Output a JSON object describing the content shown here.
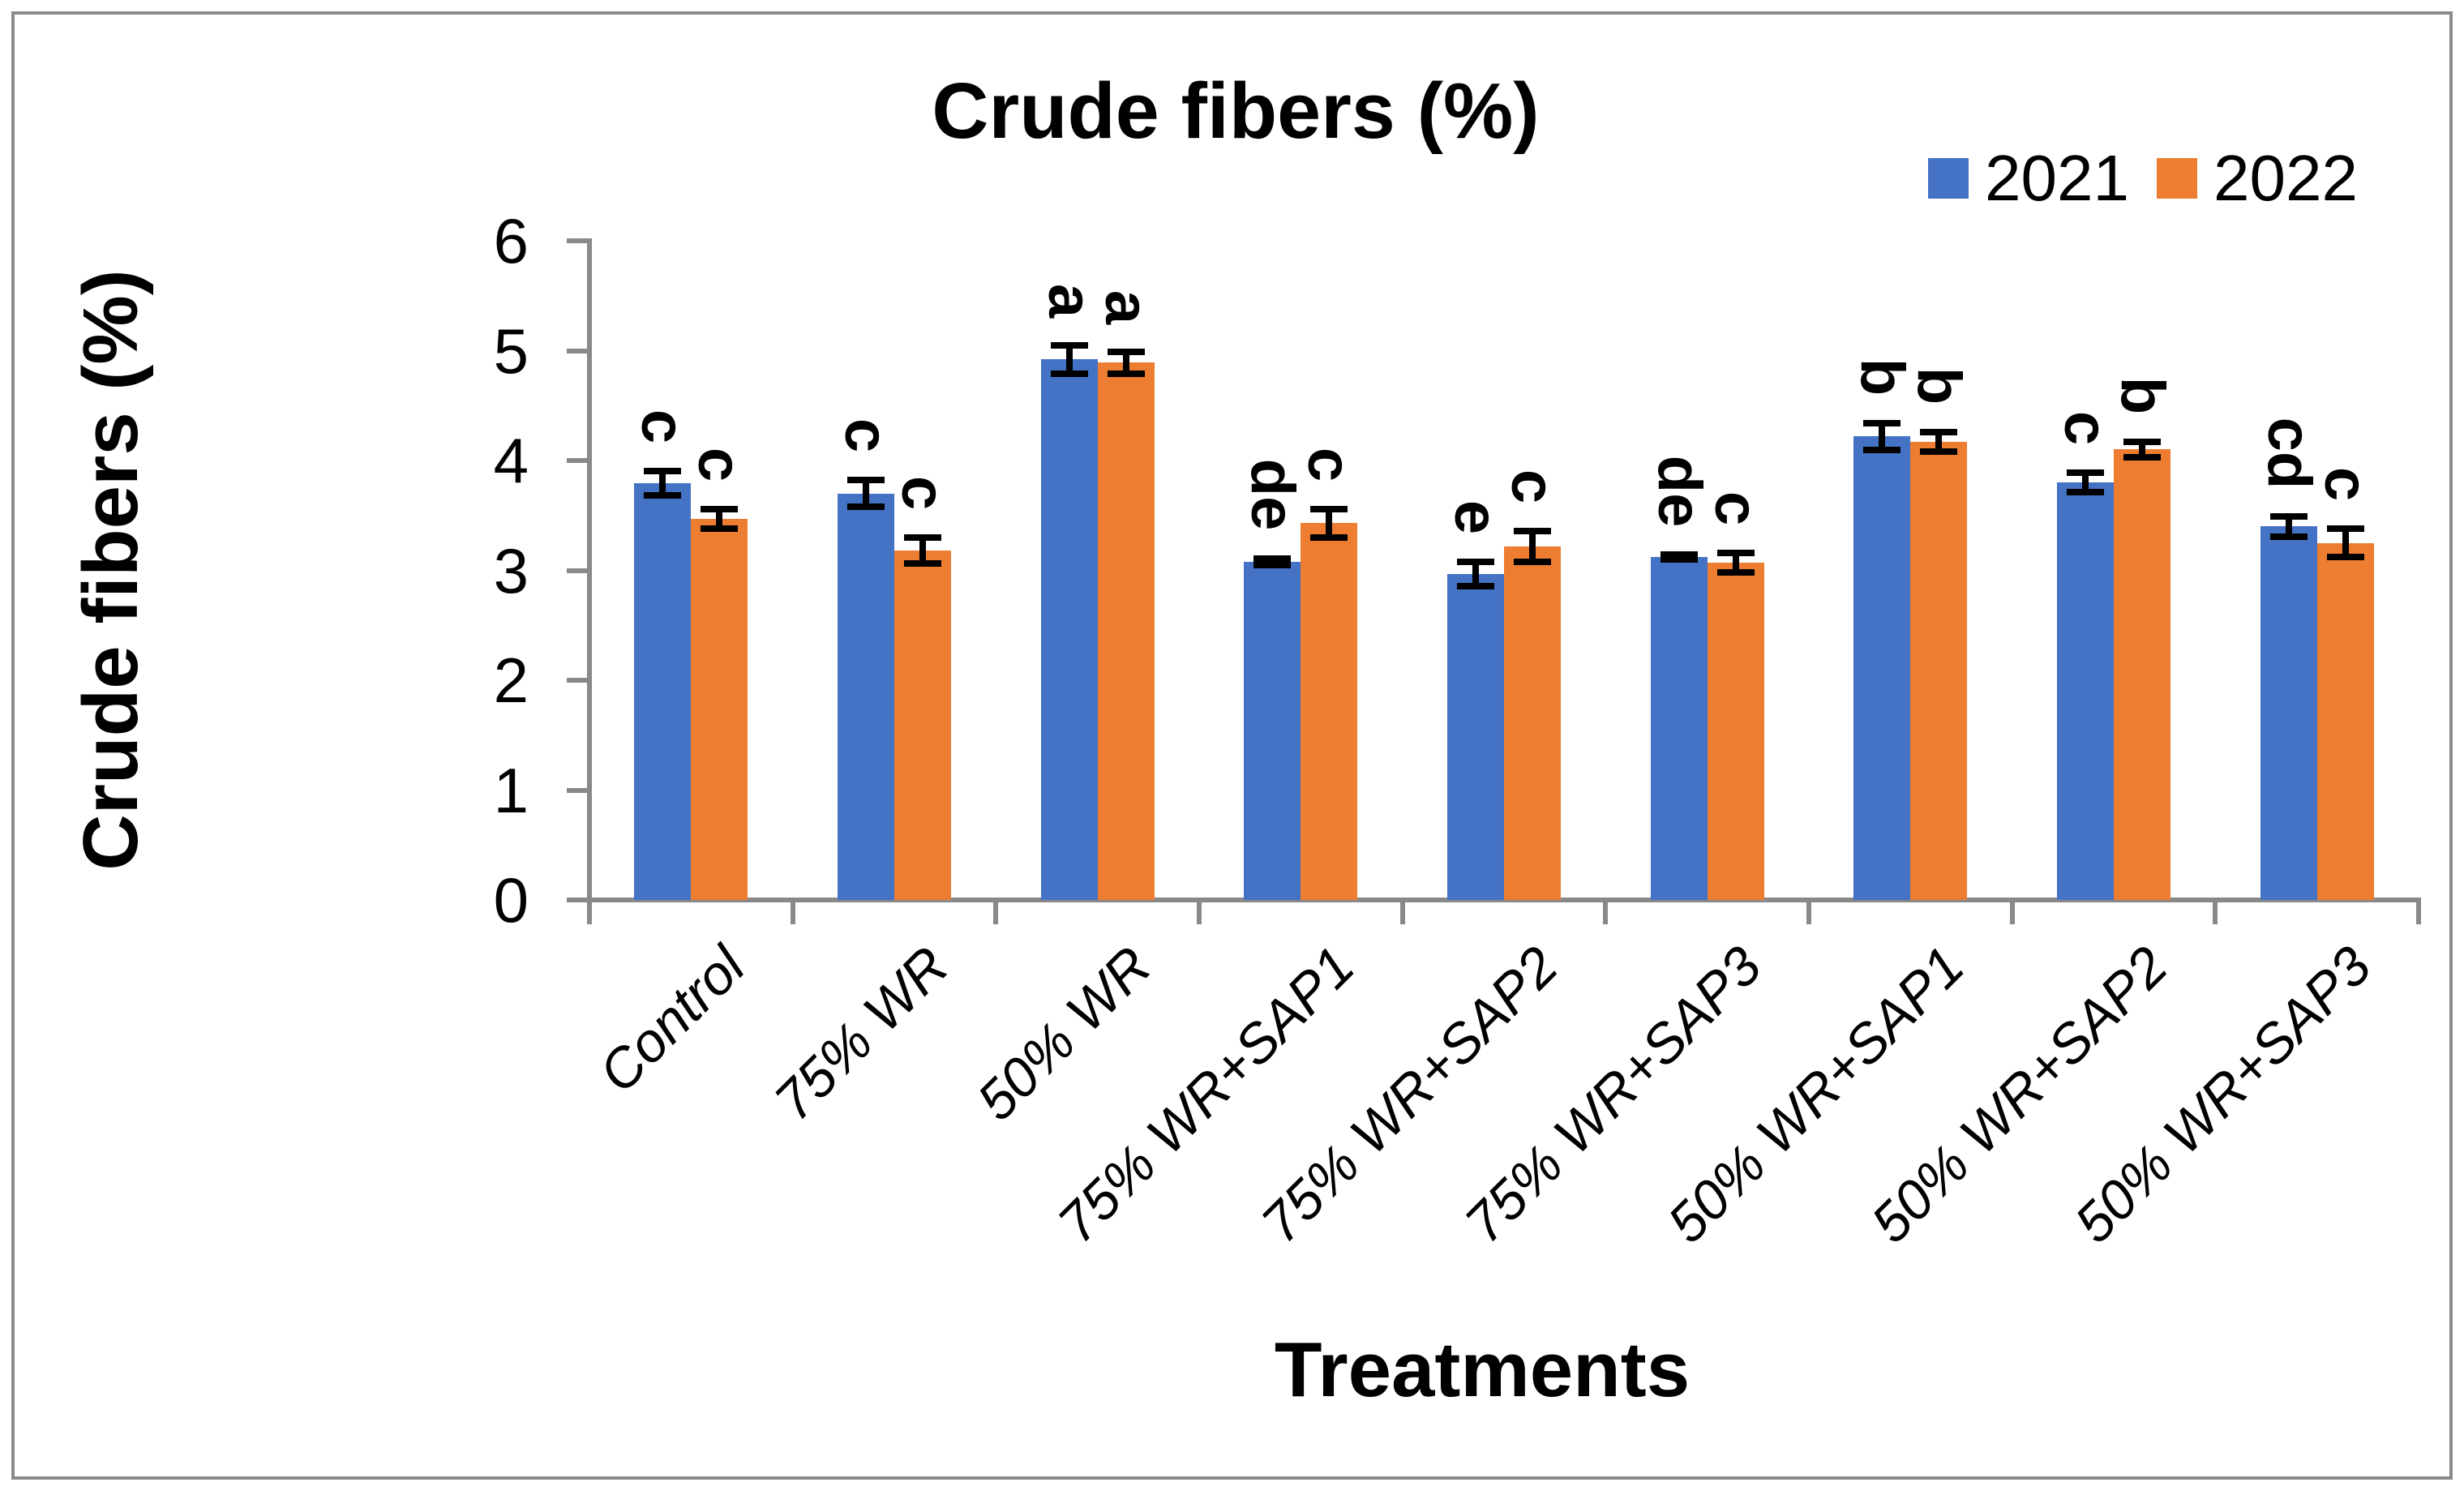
{
  "colors": {
    "series_2021": "#4472C4",
    "series_2022": "#ED7D31",
    "axis": "#898989",
    "frame_border": "#8a8a8a",
    "text": "#000000"
  },
  "chart_data": {
    "type": "bar",
    "title": "Crude fibers (%)",
    "xlabel": "Treatments",
    "ylabel": "Crude fibers (%)",
    "ylim": [
      0,
      6
    ],
    "yticks": [
      0,
      1,
      2,
      3,
      4,
      5,
      6
    ],
    "grid": false,
    "legend_position": "top-right",
    "categories": [
      "Control",
      "75% WR",
      "50% WR",
      "75% WR+SAP1",
      "75% WR+SAP2",
      "75% WR+SAP3",
      "50% WR+SAP1",
      "50% WR+SAP2",
      "50% WR+SAP3"
    ],
    "series": [
      {
        "name": "2021",
        "color": "#4472C4",
        "values": [
          3.79,
          3.7,
          4.92,
          3.08,
          2.97,
          3.12,
          4.22,
          3.8,
          3.4
        ],
        "errors": [
          0.14,
          0.15,
          0.16,
          0.06,
          0.14,
          0.05,
          0.15,
          0.12,
          0.12
        ],
        "letters": [
          "c",
          "c",
          "a",
          "de",
          "e",
          "de",
          "b",
          "c",
          "cd"
        ]
      },
      {
        "name": "2022",
        "color": "#ED7D31",
        "values": [
          3.47,
          3.18,
          4.89,
          3.43,
          3.22,
          3.07,
          4.17,
          4.1,
          3.25
        ],
        "errors": [
          0.12,
          0.15,
          0.13,
          0.16,
          0.17,
          0.12,
          0.12,
          0.1,
          0.16
        ],
        "letters": [
          "c",
          "c",
          "a",
          "c",
          "c",
          "c",
          "b",
          "b",
          "c"
        ]
      }
    ]
  }
}
